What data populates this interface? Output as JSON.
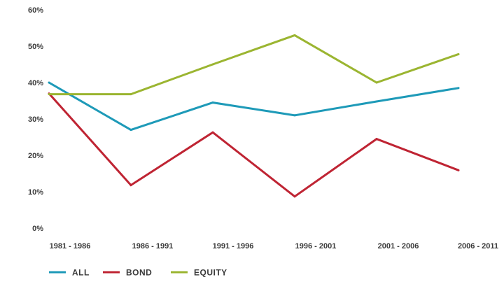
{
  "chart_data": {
    "type": "line",
    "title": "",
    "xlabel": "",
    "ylabel": "",
    "categories": [
      "1981 - 1986",
      "1986 - 1991",
      "1991 - 1996",
      "1996 - 2001",
      "2001 - 2006",
      "2006 - 2011"
    ],
    "y_ticks": [
      "0%",
      "10%",
      "20%",
      "30%",
      "40%",
      "50%",
      "60%"
    ],
    "ylim": [
      0,
      60
    ],
    "grid": false,
    "legend_position": "bottom-left",
    "series": [
      {
        "name": "ALL",
        "color": "#1e9ab8",
        "values": [
          40,
          27,
          34.5,
          31,
          34.8,
          38.5
        ]
      },
      {
        "name": "BOND",
        "color": "#bf2433",
        "values": [
          37,
          11.8,
          26.3,
          8.7,
          24.5,
          15.9
        ]
      },
      {
        "name": "EQUITY",
        "color": "#9bb531",
        "values": [
          36.8,
          36.8,
          45,
          53,
          40,
          47.8
        ]
      }
    ]
  }
}
